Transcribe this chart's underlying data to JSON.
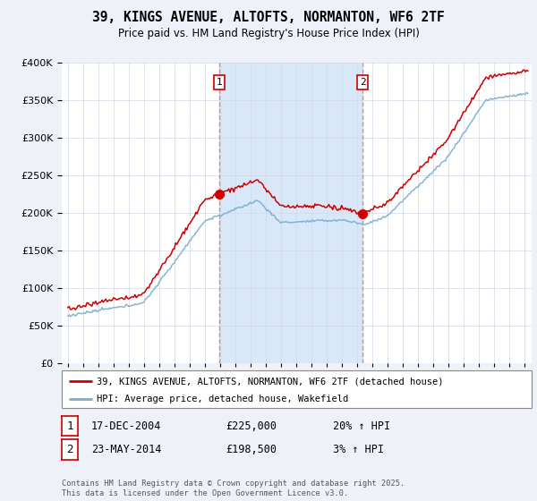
{
  "title_line1": "39, KINGS AVENUE, ALTOFTS, NORMANTON, WF6 2TF",
  "title_line2": "Price paid vs. HM Land Registry's House Price Index (HPI)",
  "ylim": [
    0,
    400000
  ],
  "xlim_start": 1994.6,
  "xlim_end": 2025.5,
  "sale1_x": 2004.96,
  "sale1_y": 225000,
  "sale2_x": 2014.38,
  "sale2_y": 198500,
  "red_line_color": "#cc0000",
  "blue_line_color": "#7aadcc",
  "vline_color": "#e08080",
  "span_color": "#d8e8f8",
  "background_color": "#eef2f8",
  "plot_bg_color": "#ffffff",
  "grid_color": "#d0d8e8",
  "legend1": "39, KINGS AVENUE, ALTOFTS, NORMANTON, WF6 2TF (detached house)",
  "legend2": "HPI: Average price, detached house, Wakefield",
  "sale1_date": "17-DEC-2004",
  "sale1_price": "£225,000",
  "sale1_hpi": "20% ↑ HPI",
  "sale2_date": "23-MAY-2014",
  "sale2_price": "£198,500",
  "sale2_hpi": "3% ↑ HPI",
  "footnote": "Contains HM Land Registry data © Crown copyright and database right 2025.\nThis data is licensed under the Open Government Licence v3.0."
}
